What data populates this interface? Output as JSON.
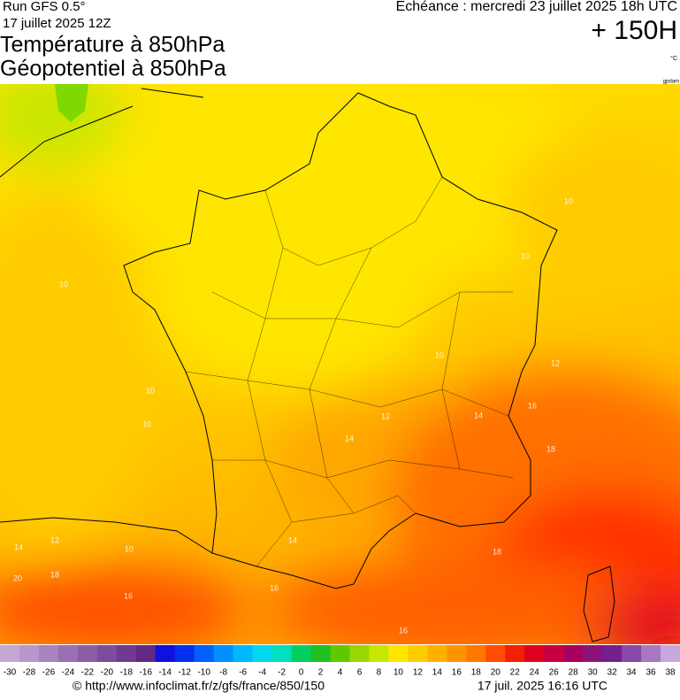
{
  "header": {
    "run": "Run GFS 0.5°",
    "date": "17 juillet 2025 12Z",
    "title_temp": "Température à 850hPa",
    "title_geo": "Géopotentiel à 850hPa",
    "echeance": "Echéance : mercredi 23 juillet 2025 18h UTC",
    "lead": "+ 150H",
    "unit": "°C",
    "credit": "gpdam"
  },
  "colorbar": {
    "labels": [
      -30,
      -28,
      -26,
      -24,
      -22,
      -20,
      -18,
      -16,
      -14,
      -12,
      -10,
      -8,
      -6,
      -4,
      -2,
      0,
      2,
      4,
      6,
      8,
      10,
      12,
      14,
      16,
      18,
      20,
      22,
      24,
      26,
      28,
      30,
      32,
      34,
      36,
      38
    ],
    "colors": [
      "#c4a8d4",
      "#b896cc",
      "#a884c0",
      "#9a70b4",
      "#8c5ea8",
      "#7e4c9c",
      "#703a90",
      "#622884",
      "#1010e0",
      "#0030f0",
      "#0060f8",
      "#0090ff",
      "#00b8ff",
      "#00d8f0",
      "#00e0c0",
      "#00d060",
      "#20c020",
      "#60c800",
      "#98d800",
      "#c8e600",
      "#ffe600",
      "#ffcc00",
      "#ffb000",
      "#ff9400",
      "#ff7800",
      "#ff4c00",
      "#f02000",
      "#e00020",
      "#c80040",
      "#a80060",
      "#8c1478",
      "#74208c",
      "#8a48a8",
      "#a878c0",
      "#c8a8dc"
    ]
  },
  "contours": [
    10,
    10,
    10,
    10,
    10,
    10,
    10,
    12,
    12,
    12,
    14,
    14,
    14,
    14,
    16,
    16,
    16,
    16,
    18,
    18,
    18,
    20
  ],
  "footer": {
    "url": "© http://www.infoclimat.fr/z/gfs/france/850/150",
    "time": "17 juil. 2025 16:16 UTC"
  }
}
